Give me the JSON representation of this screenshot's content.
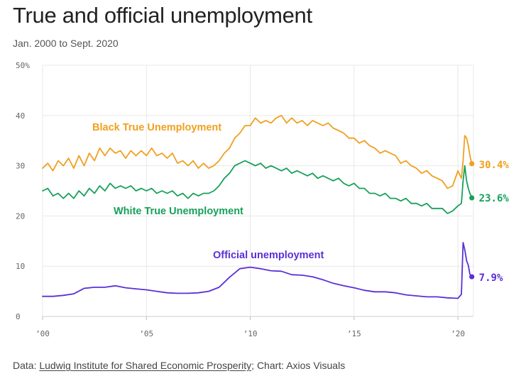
{
  "header": {
    "title": "True and official unemployment",
    "subtitle": "Jan. 2000 to Sept. 2020"
  },
  "footer": {
    "prefix": "Data: ",
    "source_link": "Ludwig Institute for Shared Economic Prosperity",
    "suffix": "; Chart: Axios Visuals"
  },
  "chart_data": {
    "type": "line",
    "ylim": [
      0,
      50
    ],
    "xlim": [
      2000.0,
      2020.75
    ],
    "y_ticks": [
      {
        "value": 50,
        "label": "50%"
      },
      {
        "value": 40,
        "label": "40"
      },
      {
        "value": 30,
        "label": "30"
      },
      {
        "value": 20,
        "label": "20"
      },
      {
        "value": 10,
        "label": "10"
      },
      {
        "value": 0,
        "label": "0"
      }
    ],
    "x_ticks": [
      {
        "value": 2000,
        "label": "’00"
      },
      {
        "value": 2005,
        "label": "’05"
      },
      {
        "value": 2010,
        "label": "’10"
      },
      {
        "value": 2015,
        "label": "’15"
      },
      {
        "value": 2020,
        "label": "’20"
      }
    ],
    "grid": true,
    "series": [
      {
        "name": "Black True Unemployment",
        "color": "#f0a020",
        "end_label": "30.4%",
        "points": [
          [
            2000.0,
            29.5
          ],
          [
            2000.25,
            30.5
          ],
          [
            2000.5,
            29.0
          ],
          [
            2000.75,
            31.0
          ],
          [
            2001.0,
            30.0
          ],
          [
            2001.25,
            31.5
          ],
          [
            2001.5,
            29.5
          ],
          [
            2001.75,
            32.0
          ],
          [
            2002.0,
            30.0
          ],
          [
            2002.25,
            32.5
          ],
          [
            2002.5,
            31.0
          ],
          [
            2002.75,
            33.5
          ],
          [
            2003.0,
            32.0
          ],
          [
            2003.25,
            33.5
          ],
          [
            2003.5,
            32.5
          ],
          [
            2003.75,
            33.0
          ],
          [
            2004.0,
            31.5
          ],
          [
            2004.25,
            33.0
          ],
          [
            2004.5,
            32.0
          ],
          [
            2004.75,
            33.0
          ],
          [
            2005.0,
            32.0
          ],
          [
            2005.25,
            33.5
          ],
          [
            2005.5,
            32.0
          ],
          [
            2005.75,
            32.5
          ],
          [
            2006.0,
            31.5
          ],
          [
            2006.25,
            32.5
          ],
          [
            2006.5,
            30.5
          ],
          [
            2006.75,
            31.0
          ],
          [
            2007.0,
            30.0
          ],
          [
            2007.25,
            31.0
          ],
          [
            2007.5,
            29.5
          ],
          [
            2007.75,
            30.5
          ],
          [
            2008.0,
            29.5
          ],
          [
            2008.25,
            30.0
          ],
          [
            2008.5,
            31.0
          ],
          [
            2008.75,
            32.5
          ],
          [
            2009.0,
            33.5
          ],
          [
            2009.25,
            35.5
          ],
          [
            2009.5,
            36.5
          ],
          [
            2009.75,
            38.0
          ],
          [
            2010.0,
            38.0
          ],
          [
            2010.25,
            39.5
          ],
          [
            2010.5,
            38.5
          ],
          [
            2010.75,
            39.0
          ],
          [
            2011.0,
            38.5
          ],
          [
            2011.25,
            39.5
          ],
          [
            2011.5,
            40.0
          ],
          [
            2011.75,
            38.5
          ],
          [
            2012.0,
            39.5
          ],
          [
            2012.25,
            38.5
          ],
          [
            2012.5,
            39.0
          ],
          [
            2012.75,
            38.0
          ],
          [
            2013.0,
            39.0
          ],
          [
            2013.25,
            38.5
          ],
          [
            2013.5,
            38.0
          ],
          [
            2013.75,
            38.5
          ],
          [
            2014.0,
            37.5
          ],
          [
            2014.25,
            37.0
          ],
          [
            2014.5,
            36.5
          ],
          [
            2014.75,
            35.5
          ],
          [
            2015.0,
            35.5
          ],
          [
            2015.25,
            34.5
          ],
          [
            2015.5,
            35.0
          ],
          [
            2015.75,
            34.0
          ],
          [
            2016.0,
            33.5
          ],
          [
            2016.25,
            32.5
          ],
          [
            2016.5,
            33.0
          ],
          [
            2016.75,
            32.5
          ],
          [
            2017.0,
            32.0
          ],
          [
            2017.25,
            30.5
          ],
          [
            2017.5,
            31.0
          ],
          [
            2017.75,
            30.0
          ],
          [
            2018.0,
            29.5
          ],
          [
            2018.25,
            28.5
          ],
          [
            2018.5,
            29.0
          ],
          [
            2018.75,
            28.0
          ],
          [
            2019.0,
            27.5
          ],
          [
            2019.25,
            27.0
          ],
          [
            2019.5,
            25.5
          ],
          [
            2019.75,
            26.0
          ],
          [
            2020.0,
            29.0
          ],
          [
            2020.17,
            27.5
          ],
          [
            2020.25,
            31.0
          ],
          [
            2020.33,
            36.0
          ],
          [
            2020.42,
            35.5
          ],
          [
            2020.5,
            34.0
          ],
          [
            2020.58,
            32.0
          ],
          [
            2020.67,
            30.4
          ]
        ]
      },
      {
        "name": "White True Unemployment",
        "color": "#16a05a",
        "end_label": "23.6%",
        "points": [
          [
            2000.0,
            25.0
          ],
          [
            2000.25,
            25.5
          ],
          [
            2000.5,
            24.0
          ],
          [
            2000.75,
            24.5
          ],
          [
            2001.0,
            23.5
          ],
          [
            2001.25,
            24.5
          ],
          [
            2001.5,
            23.5
          ],
          [
            2001.75,
            25.0
          ],
          [
            2002.0,
            24.0
          ],
          [
            2002.25,
            25.5
          ],
          [
            2002.5,
            24.5
          ],
          [
            2002.75,
            26.0
          ],
          [
            2003.0,
            25.0
          ],
          [
            2003.25,
            26.5
          ],
          [
            2003.5,
            25.5
          ],
          [
            2003.75,
            26.0
          ],
          [
            2004.0,
            25.5
          ],
          [
            2004.25,
            26.0
          ],
          [
            2004.5,
            25.0
          ],
          [
            2004.75,
            25.5
          ],
          [
            2005.0,
            25.0
          ],
          [
            2005.25,
            25.5
          ],
          [
            2005.5,
            24.5
          ],
          [
            2005.75,
            25.0
          ],
          [
            2006.0,
            24.5
          ],
          [
            2006.25,
            25.0
          ],
          [
            2006.5,
            24.0
          ],
          [
            2006.75,
            24.5
          ],
          [
            2007.0,
            23.5
          ],
          [
            2007.25,
            24.5
          ],
          [
            2007.5,
            24.0
          ],
          [
            2007.75,
            24.5
          ],
          [
            2008.0,
            24.5
          ],
          [
            2008.25,
            25.0
          ],
          [
            2008.5,
            26.0
          ],
          [
            2008.75,
            27.5
          ],
          [
            2009.0,
            28.5
          ],
          [
            2009.25,
            30.0
          ],
          [
            2009.5,
            30.5
          ],
          [
            2009.75,
            31.0
          ],
          [
            2010.0,
            30.5
          ],
          [
            2010.25,
            30.0
          ],
          [
            2010.5,
            30.5
          ],
          [
            2010.75,
            29.5
          ],
          [
            2011.0,
            30.0
          ],
          [
            2011.25,
            29.5
          ],
          [
            2011.5,
            29.0
          ],
          [
            2011.75,
            29.5
          ],
          [
            2012.0,
            28.5
          ],
          [
            2012.25,
            29.0
          ],
          [
            2012.5,
            28.5
          ],
          [
            2012.75,
            28.0
          ],
          [
            2013.0,
            28.5
          ],
          [
            2013.25,
            27.5
          ],
          [
            2013.5,
            28.0
          ],
          [
            2013.75,
            27.5
          ],
          [
            2014.0,
            27.0
          ],
          [
            2014.25,
            27.5
          ],
          [
            2014.5,
            26.5
          ],
          [
            2014.75,
            26.0
          ],
          [
            2015.0,
            26.5
          ],
          [
            2015.25,
            25.5
          ],
          [
            2015.5,
            25.5
          ],
          [
            2015.75,
            24.5
          ],
          [
            2016.0,
            24.5
          ],
          [
            2016.25,
            24.0
          ],
          [
            2016.5,
            24.5
          ],
          [
            2016.75,
            23.5
          ],
          [
            2017.0,
            23.5
          ],
          [
            2017.25,
            23.0
          ],
          [
            2017.5,
            23.5
          ],
          [
            2017.75,
            22.5
          ],
          [
            2018.0,
            22.5
          ],
          [
            2018.25,
            22.0
          ],
          [
            2018.5,
            22.5
          ],
          [
            2018.75,
            21.5
          ],
          [
            2019.0,
            21.5
          ],
          [
            2019.25,
            21.5
          ],
          [
            2019.5,
            20.5
          ],
          [
            2019.75,
            21.0
          ],
          [
            2020.0,
            22.0
          ],
          [
            2020.17,
            22.5
          ],
          [
            2020.25,
            27.0
          ],
          [
            2020.33,
            30.0
          ],
          [
            2020.42,
            27.0
          ],
          [
            2020.5,
            25.5
          ],
          [
            2020.58,
            24.5
          ],
          [
            2020.67,
            23.6
          ]
        ]
      },
      {
        "name": "Official unemployment",
        "color": "#5a2fd8",
        "end_label": "7.9%",
        "points": [
          [
            2000.0,
            4.0
          ],
          [
            2000.5,
            4.0
          ],
          [
            2001.0,
            4.2
          ],
          [
            2001.5,
            4.5
          ],
          [
            2002.0,
            5.6
          ],
          [
            2002.5,
            5.8
          ],
          [
            2003.0,
            5.8
          ],
          [
            2003.5,
            6.1
          ],
          [
            2004.0,
            5.7
          ],
          [
            2004.5,
            5.5
          ],
          [
            2005.0,
            5.3
          ],
          [
            2005.5,
            5.0
          ],
          [
            2006.0,
            4.7
          ],
          [
            2006.5,
            4.6
          ],
          [
            2007.0,
            4.6
          ],
          [
            2007.5,
            4.7
          ],
          [
            2008.0,
            5.0
          ],
          [
            2008.5,
            5.8
          ],
          [
            2009.0,
            7.8
          ],
          [
            2009.5,
            9.5
          ],
          [
            2010.0,
            9.8
          ],
          [
            2010.5,
            9.5
          ],
          [
            2011.0,
            9.1
          ],
          [
            2011.5,
            9.0
          ],
          [
            2012.0,
            8.3
          ],
          [
            2012.5,
            8.2
          ],
          [
            2013.0,
            7.9
          ],
          [
            2013.5,
            7.3
          ],
          [
            2014.0,
            6.6
          ],
          [
            2014.5,
            6.1
          ],
          [
            2015.0,
            5.7
          ],
          [
            2015.5,
            5.2
          ],
          [
            2016.0,
            4.9
          ],
          [
            2016.5,
            4.9
          ],
          [
            2017.0,
            4.7
          ],
          [
            2017.5,
            4.3
          ],
          [
            2018.0,
            4.1
          ],
          [
            2018.5,
            3.9
          ],
          [
            2019.0,
            3.9
          ],
          [
            2019.5,
            3.7
          ],
          [
            2020.0,
            3.6
          ],
          [
            2020.17,
            4.4
          ],
          [
            2020.25,
            14.7
          ],
          [
            2020.33,
            13.3
          ],
          [
            2020.42,
            11.1
          ],
          [
            2020.5,
            10.2
          ],
          [
            2020.58,
            8.4
          ],
          [
            2020.67,
            7.9
          ]
        ]
      }
    ]
  }
}
